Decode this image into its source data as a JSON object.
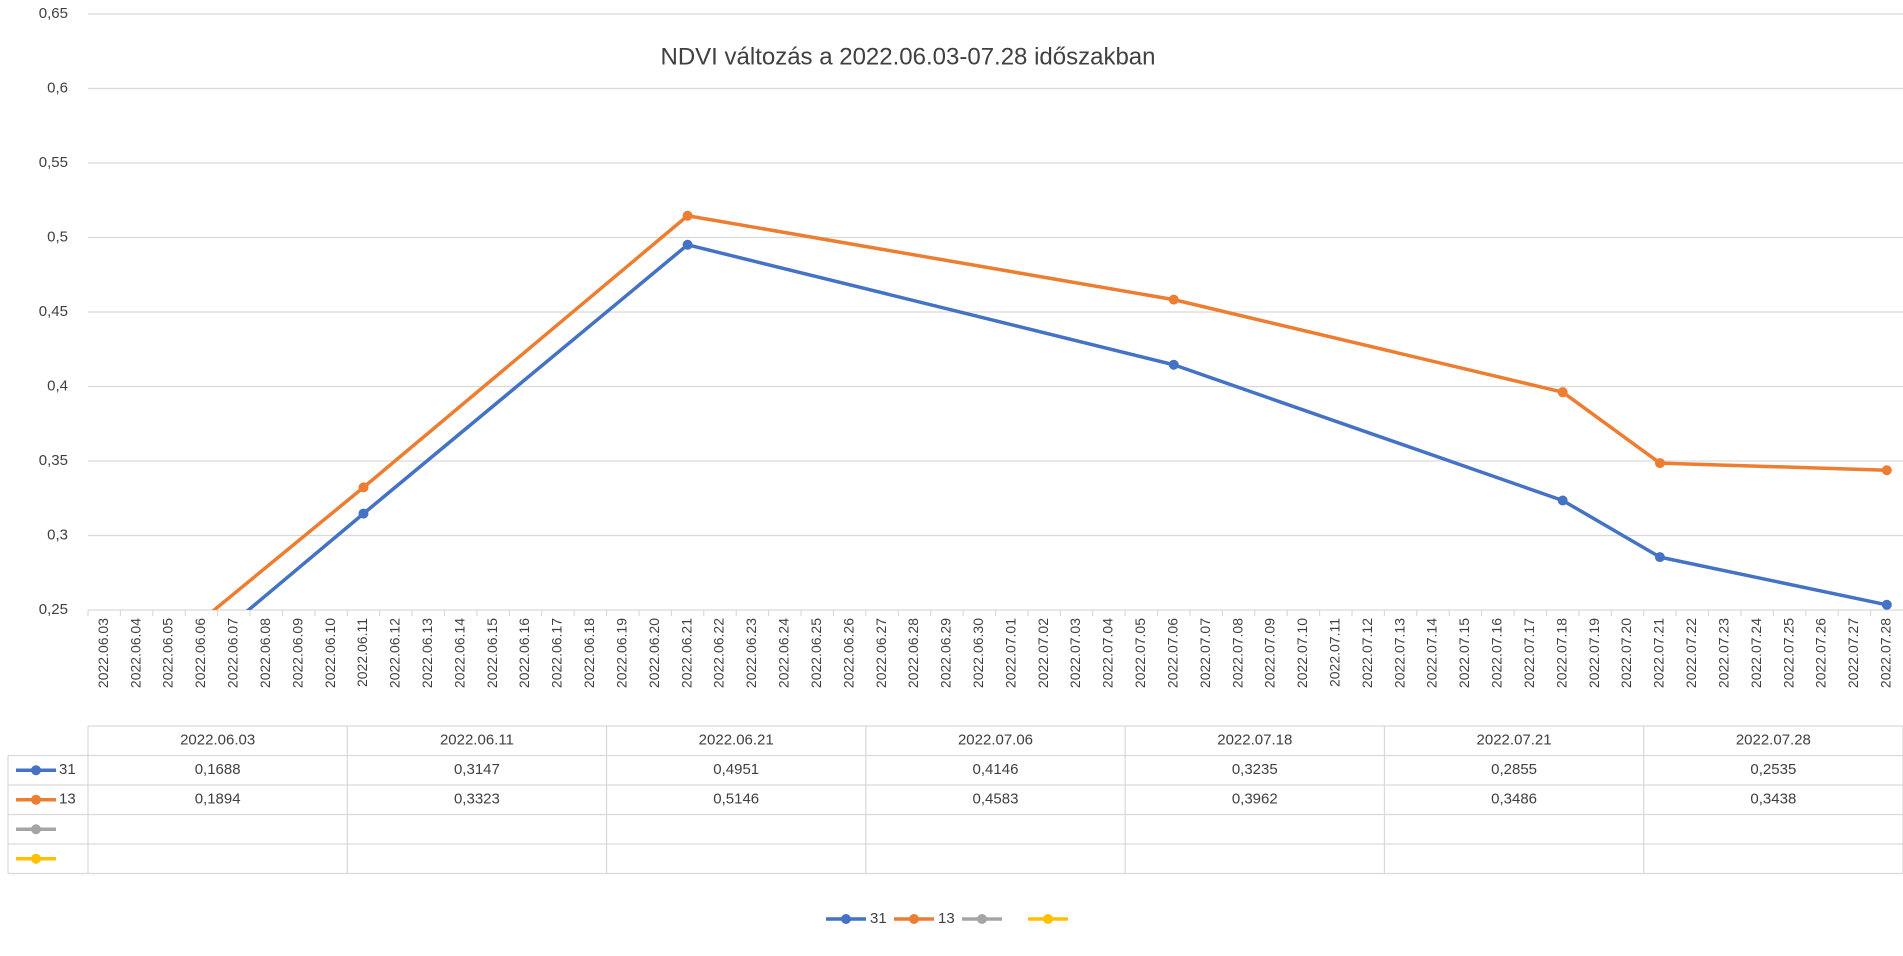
{
  "chart_data": {
    "type": "line",
    "title": "NDVI változás a 2022.06.03-07.28 időszakban",
    "x": [
      "2022.06.03",
      "2022.06.11",
      "2022.06.21",
      "2022.07.06",
      "2022.07.18",
      "2022.07.21",
      "2022.07.28"
    ],
    "xlim": [
      "2022.06.03",
      "2022.07.28"
    ],
    "xticks": [
      "2022.06.03",
      "2022.06.04",
      "2022.06.05",
      "2022.06.06",
      "2022.06.07",
      "2022.06.08",
      "2022.06.09",
      "2022.06.10",
      "2022.06.11",
      "2022.06.12",
      "2022.06.13",
      "2022.06.14",
      "2022.06.15",
      "2022.06.16",
      "2022.06.17",
      "2022.06.18",
      "2022.06.19",
      "2022.06.20",
      "2022.06.21",
      "2022.06.22",
      "2022.06.23",
      "2022.06.24",
      "2022.06.25",
      "2022.06.26",
      "2022.06.27",
      "2022.06.28",
      "2022.06.29",
      "2022.06.30",
      "2022.07.01",
      "2022.07.02",
      "2022.07.03",
      "2022.07.04",
      "2022.07.05",
      "2022.07.06",
      "2022.07.07",
      "2022.07.08",
      "2022.07.09",
      "2022.07.10",
      "2022.07.11",
      "2022.07.12",
      "2022.07.13",
      "2022.07.14",
      "2022.07.15",
      "2022.07.16",
      "2022.07.17",
      "2022.07.18",
      "2022.07.19",
      "2022.07.20",
      "2022.07.21",
      "2022.07.22",
      "2022.07.23",
      "2022.07.24",
      "2022.07.25",
      "2022.07.26",
      "2022.07.27",
      "2022.07.28"
    ],
    "ylim": [
      0.25,
      0.65
    ],
    "yticks": [
      {
        "value": 0.25,
        "label": "0,25"
      },
      {
        "value": 0.3,
        "label": "0,3"
      },
      {
        "value": 0.35,
        "label": "0,35"
      },
      {
        "value": 0.4,
        "label": "0,4"
      },
      {
        "value": 0.45,
        "label": "0,45"
      },
      {
        "value": 0.5,
        "label": "0,5"
      },
      {
        "value": 0.55,
        "label": "0,55"
      },
      {
        "value": 0.6,
        "label": "0,6"
      },
      {
        "value": 0.65,
        "label": "0,65"
      }
    ],
    "grid": true,
    "legend": "bottom",
    "series": [
      {
        "name": "31",
        "color": "#4472c4",
        "values": [
          0.1688,
          0.3147,
          0.4951,
          0.4146,
          0.3235,
          0.2855,
          0.2535
        ],
        "value_labels": [
          "0,1688",
          "0,3147",
          "0,4951",
          "0,4146",
          "0,3235",
          "0,2855",
          "0,2535"
        ]
      },
      {
        "name": "13",
        "color": "#ed7d31",
        "values": [
          0.1894,
          0.3323,
          0.5146,
          0.4583,
          0.3962,
          0.3486,
          0.3438
        ],
        "value_labels": [
          "0,1894",
          "0,3323",
          "0,5146",
          "0,4583",
          "0,3962",
          "0,3486",
          "0,3438"
        ]
      },
      {
        "color": "#a5a5a5",
        "values": [
          null,
          null,
          null,
          null,
          null,
          null,
          null
        ]
      },
      {
        "color": "#ffc000",
        "values": [
          null,
          null,
          null,
          null,
          null,
          null,
          null
        ]
      }
    ]
  }
}
